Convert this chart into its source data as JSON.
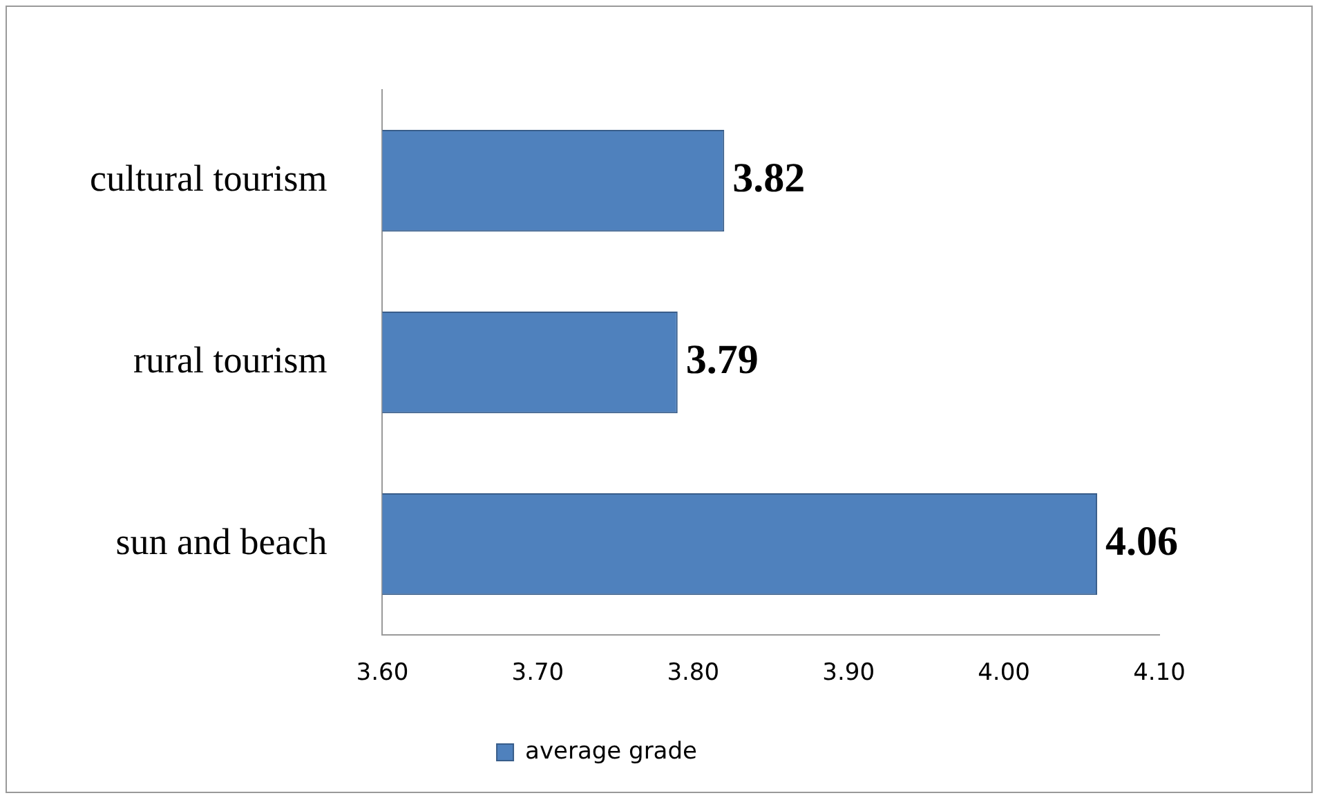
{
  "chart_data": {
    "type": "bar",
    "orientation": "horizontal",
    "categories": [
      "cultural tourism",
      "rural tourism",
      "sun and beach"
    ],
    "series": [
      {
        "name": "average grade",
        "color": "#4f81bd",
        "values": [
          3.82,
          3.79,
          4.06
        ]
      }
    ],
    "xlim": [
      3.6,
      4.1
    ],
    "xticks": [
      {
        "value": 3.6,
        "label": "3.60"
      },
      {
        "value": 3.7,
        "label": "3.70"
      },
      {
        "value": 3.8,
        "label": "3.80"
      },
      {
        "value": 3.9,
        "label": "3.90"
      },
      {
        "value": 4.0,
        "label": "4.00"
      },
      {
        "value": 4.1,
        "label": "4.10"
      }
    ],
    "data_labels": true,
    "grid": false,
    "legend": "bottom"
  }
}
